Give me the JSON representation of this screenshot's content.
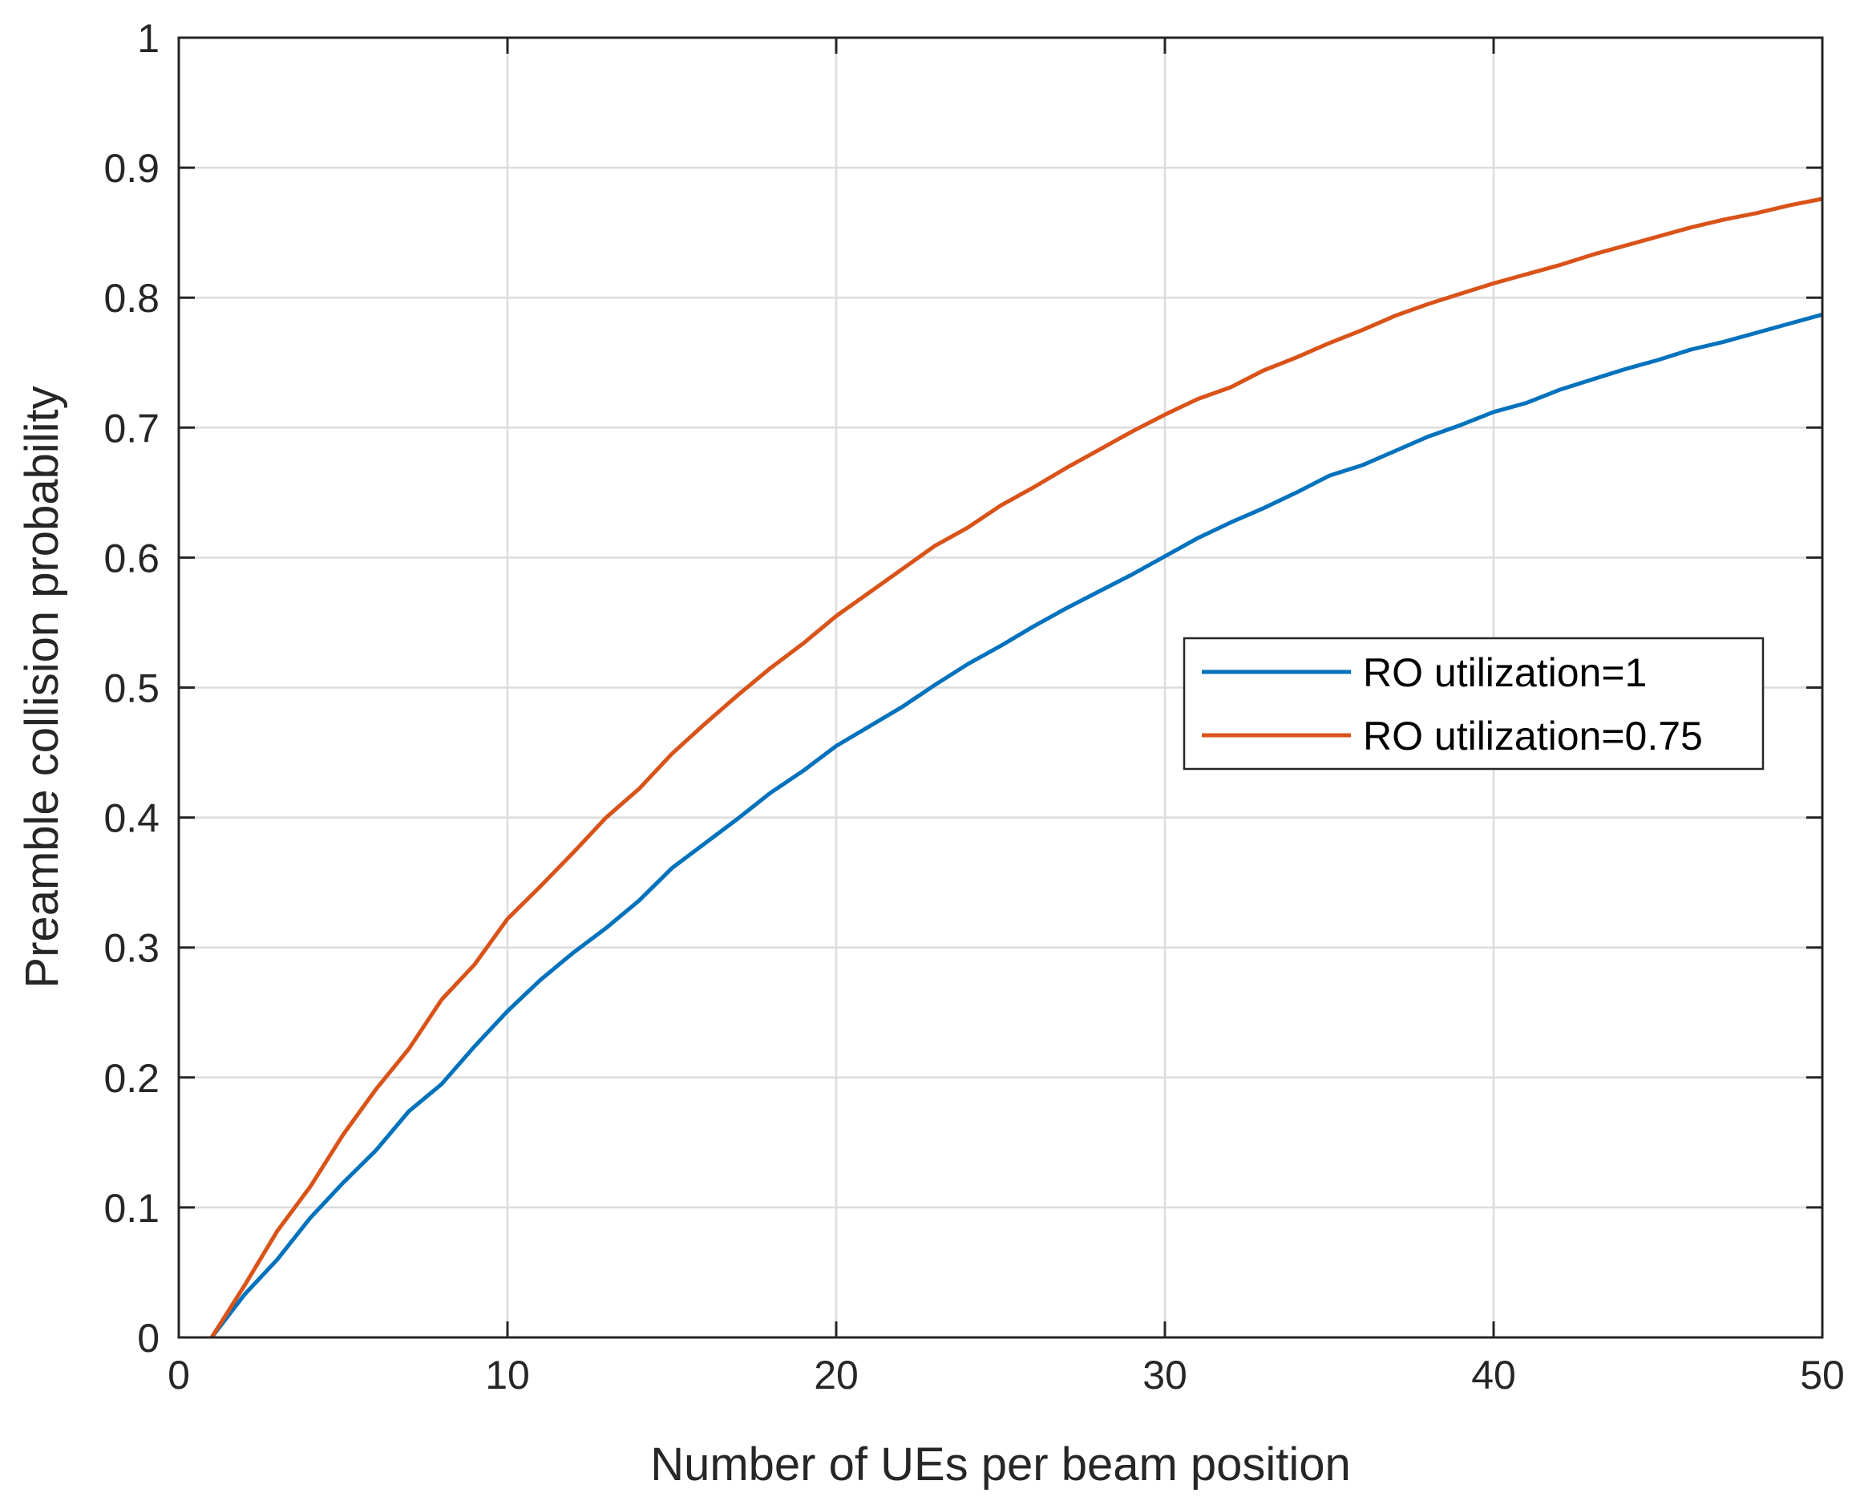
{
  "chart_data": {
    "type": "line",
    "title": "",
    "xlabel": "Number of UEs per beam position",
    "ylabel": "Preamble collision probability",
    "xlim": [
      0,
      50
    ],
    "ylim": [
      0,
      1
    ],
    "xticks": [
      0,
      10,
      20,
      30,
      40,
      50
    ],
    "xtick_labels": [
      "0",
      "10",
      "20",
      "30",
      "40",
      "50"
    ],
    "yticks": [
      0,
      0.1,
      0.2,
      0.3,
      0.4,
      0.5,
      0.6,
      0.7,
      0.8,
      0.9,
      1
    ],
    "ytick_labels": [
      "0",
      "0.1",
      "0.2",
      "0.3",
      "0.4",
      "0.5",
      "0.6",
      "0.7",
      "0.8",
      "0.9",
      "1"
    ],
    "grid": true,
    "legend_position": "right",
    "x": [
      1,
      2,
      3,
      4,
      5,
      6,
      7,
      8,
      9,
      10,
      11,
      12,
      13,
      14,
      15,
      16,
      17,
      18,
      19,
      20,
      21,
      22,
      23,
      24,
      25,
      26,
      27,
      28,
      29,
      30,
      31,
      32,
      33,
      34,
      35,
      36,
      37,
      38,
      39,
      40,
      41,
      42,
      43,
      44,
      45,
      46,
      47,
      48,
      49,
      50
    ],
    "series": [
      {
        "name": "RO utilization=1",
        "color": "#0072BD",
        "values": [
          0.0,
          0.033,
          0.06,
          0.092,
          0.119,
          0.144,
          0.174,
          0.195,
          0.224,
          0.251,
          0.275,
          0.296,
          0.315,
          0.336,
          0.361,
          0.38,
          0.399,
          0.419,
          0.436,
          0.455,
          0.47,
          0.485,
          0.502,
          0.518,
          0.532,
          0.547,
          0.561,
          0.574,
          0.587,
          0.601,
          0.615,
          0.627,
          0.638,
          0.65,
          0.663,
          0.671,
          0.682,
          0.693,
          0.702,
          0.712,
          0.719,
          0.729,
          0.737,
          0.745,
          0.752,
          0.76,
          0.766,
          0.773,
          0.78,
          0.787
        ]
      },
      {
        "name": "RO utilization=0.75",
        "color": "#D95319",
        "values": [
          0.0,
          0.04,
          0.082,
          0.116,
          0.156,
          0.191,
          0.222,
          0.26,
          0.287,
          0.322,
          0.347,
          0.373,
          0.4,
          0.422,
          0.449,
          0.472,
          0.494,
          0.515,
          0.534,
          0.555,
          0.573,
          0.591,
          0.609,
          0.623,
          0.64,
          0.654,
          0.669,
          0.683,
          0.697,
          0.71,
          0.722,
          0.731,
          0.744,
          0.754,
          0.765,
          0.775,
          0.786,
          0.795,
          0.803,
          0.811,
          0.818,
          0.825,
          0.833,
          0.84,
          0.847,
          0.854,
          0.86,
          0.865,
          0.871,
          0.876
        ]
      }
    ]
  }
}
